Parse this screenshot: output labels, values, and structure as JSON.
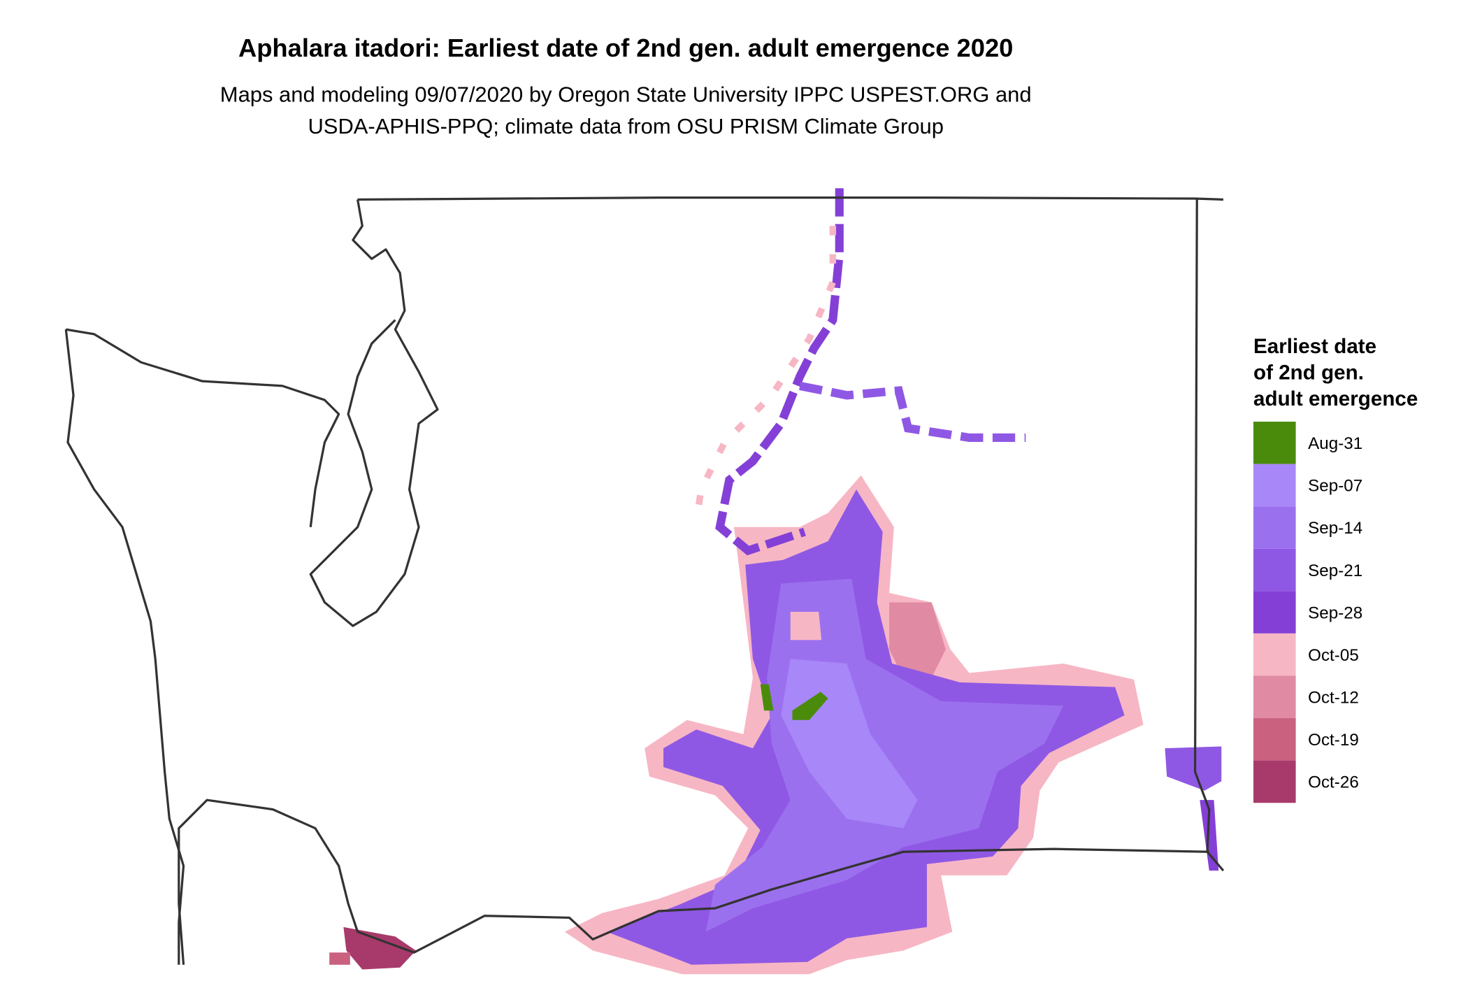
{
  "title": "Aphalara itadori: Earliest date of 2nd gen. adult emergence 2020",
  "subtitle": [
    "Maps and modeling 09/07/2020 by Oregon State University IPPC USPEST.ORG and",
    "USDA-APHIS-PPQ; climate data from OSU PRISM Climate Group"
  ],
  "legend": {
    "title": [
      "Earliest date",
      "of 2nd gen.",
      "adult emergence"
    ],
    "items": [
      {
        "label": "Aug-31",
        "color": "#4b8b0b"
      },
      {
        "label": "Sep-07",
        "color": "#a887f8"
      },
      {
        "label": "Sep-14",
        "color": "#9b70ef"
      },
      {
        "label": "Sep-21",
        "color": "#8f58e4"
      },
      {
        "label": "Sep-28",
        "color": "#8440d6"
      },
      {
        "label": "Oct-05",
        "color": "#f7b6c4"
      },
      {
        "label": "Oct-12",
        "color": "#e08aa3"
      },
      {
        "label": "Oct-19",
        "color": "#c9617f"
      },
      {
        "label": "Oct-26",
        "color": "#a83a6b"
      }
    ]
  }
}
